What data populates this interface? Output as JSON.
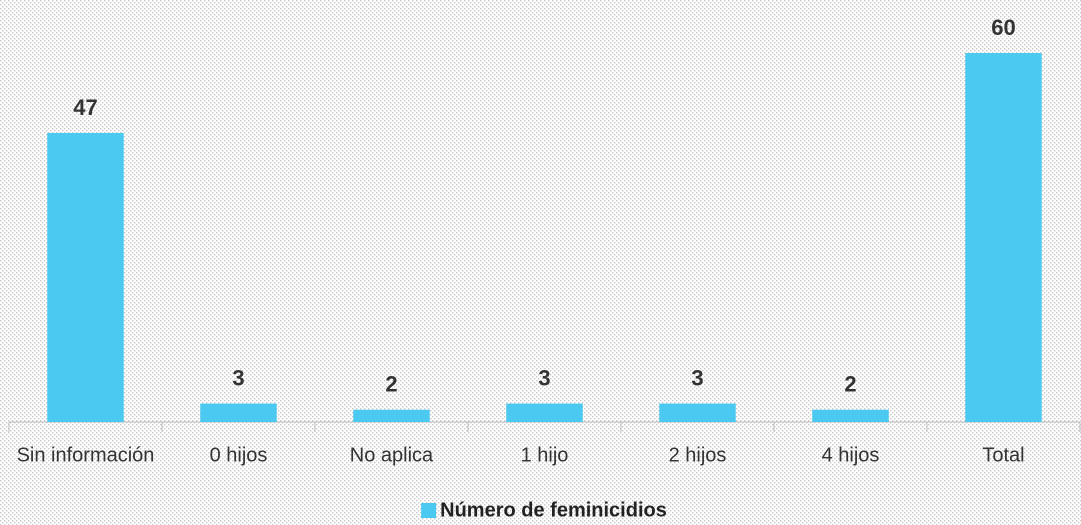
{
  "chart_data": {
    "type": "bar",
    "categories": [
      "Sin información",
      "0 hijos",
      "No aplica",
      "1 hijo",
      "2 hijos",
      "4 hijos",
      "Total"
    ],
    "series": [
      {
        "name": "Número de feminicidios",
        "color": "#4cc9f0",
        "values": [
          47,
          3,
          2,
          3,
          3,
          2,
          60
        ]
      }
    ],
    "ylim": [
      0,
      60
    ],
    "legend": "bottom"
  }
}
